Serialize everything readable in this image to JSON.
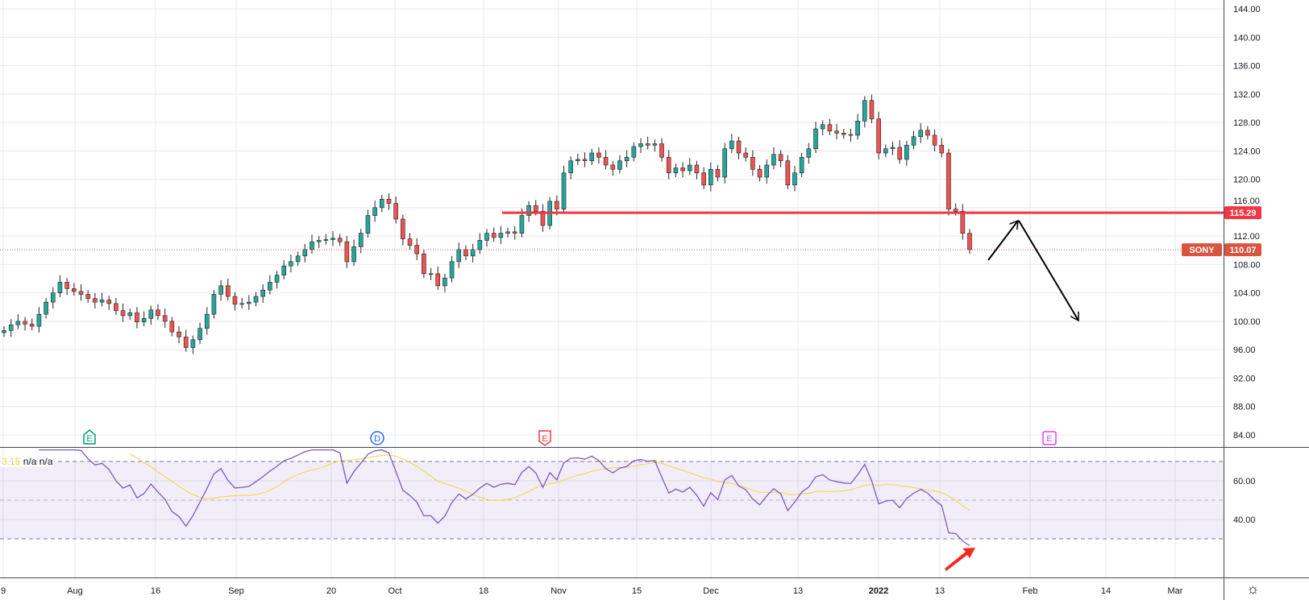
{
  "chart_data": {
    "type": "candlestick",
    "symbol": "SONY",
    "last_price": "110.07",
    "horizontal_line_price": "115.29",
    "price_ticks": [
      "144.00",
      "140.00",
      "136.00",
      "132.00",
      "128.00",
      "124.00",
      "120.00",
      "116.00",
      "112.00",
      "108.00",
      "104.00",
      "100.00",
      "96.00",
      "92.00",
      "88.00",
      "84.00"
    ],
    "ylim": [
      84,
      144
    ],
    "time_ticks": [
      "9",
      "Aug",
      "16",
      "Sep",
      "20",
      "Oct",
      "18",
      "Nov",
      "15",
      "Dec",
      "13",
      "2022",
      "13",
      "Feb",
      "14",
      "Mar"
    ],
    "closes": [
      98.7,
      99.5,
      100,
      99.6,
      99.3,
      101,
      102.7,
      104,
      105.5,
      104.6,
      104.2,
      103.8,
      103.2,
      102.7,
      103,
      102.5,
      101.5,
      100.8,
      101.2,
      99.9,
      100.4,
      101.6,
      100.8,
      100,
      98.5,
      97.8,
      96.3,
      97.4,
      99,
      101,
      103.8,
      105,
      103.5,
      102.4,
      102.5,
      102.7,
      103.5,
      104.4,
      105.5,
      106.5,
      107.8,
      108.4,
      109.2,
      110.1,
      111.2,
      111.4,
      111.5,
      111.7,
      111.2,
      108.4,
      110.5,
      112.4,
      114.9,
      116,
      117.2,
      116.6,
      114.4,
      111.6,
      110.7,
      109.5,
      106.7,
      106.7,
      105,
      106.1,
      108.4,
      110.1,
      109.2,
      110.1,
      111.4,
      112.4,
      111.8,
      112.4,
      112.6,
      112.4,
      114.9,
      116.3,
      115.5,
      113.5,
      116.9,
      115.8,
      120.9,
      122.6,
      122.8,
      122.6,
      123.7,
      123.1,
      122,
      121.4,
      122.6,
      123.1,
      124.6,
      125,
      124.8,
      125,
      123.1,
      120.9,
      121.6,
      121.2,
      122,
      120.9,
      119.2,
      121.4,
      120.3,
      124.3,
      125.4,
      123.7,
      123.1,
      121.4,
      120.3,
      122,
      123.5,
      122.6,
      119.2,
      120.9,
      123.1,
      124.3,
      127.1,
      127.7,
      126.8,
      126.5,
      126.3,
      126.2,
      128.2,
      131.1,
      128.5,
      123.7,
      124.3,
      124.5,
      122.8,
      124.8,
      126,
      126.9,
      126.2,
      124.8,
      123.7,
      115.8,
      115.5,
      112.4,
      110.1
    ],
    "indicator": {
      "name": "RSI",
      "legend_values": [
        "3.15",
        "n/a",
        "n/a"
      ],
      "ticks": [
        "60.00",
        "40.00"
      ],
      "upper_band": 70,
      "middle_band": 50,
      "lower_band": 30,
      "ylim": [
        20,
        77
      ]
    },
    "event_markers": [
      {
        "letter": "E",
        "kind": "earnings",
        "color": "#089981"
      },
      {
        "letter": "D",
        "kind": "dividend",
        "color": "#2962ff"
      },
      {
        "letter": "E",
        "kind": "earnings",
        "color": "#f23645"
      },
      {
        "letter": "E",
        "kind": "earnings-upcoming",
        "color": "#e040fb"
      }
    ],
    "colors": {
      "up": "#26a69a",
      "down": "#ef5350",
      "hline": "#f23645",
      "last": "#d9534f",
      "rsi": "#7e57c2",
      "rsi_ma": "#f2d73f"
    }
  }
}
